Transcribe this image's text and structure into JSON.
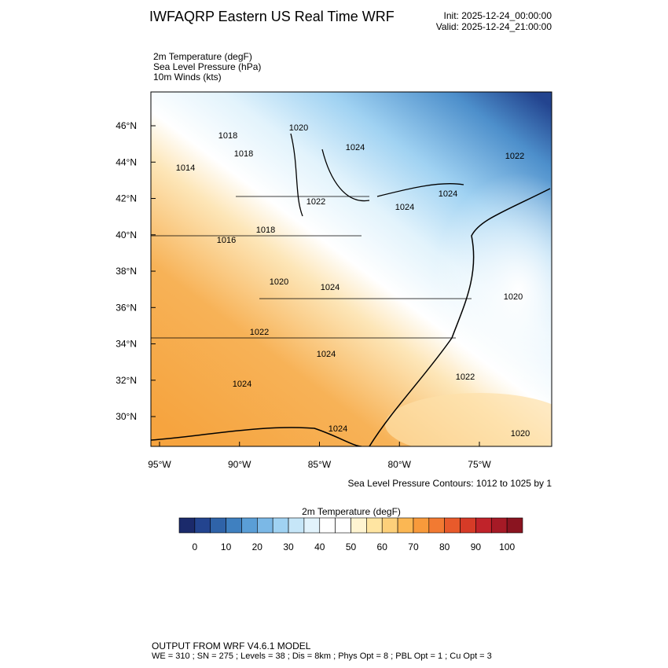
{
  "header": {
    "title": "IWFAQRP Eastern US Real Time WRF",
    "init": "Init: 2025-12-24_00:00:00",
    "valid": "Valid: 2025-12-24_21:00:00"
  },
  "fields": [
    "2m Temperature   (degF)",
    "Sea Level Pressure   (hPa)",
    "10m Winds   (kts)"
  ],
  "map": {
    "latlim": [
      28.36,
      47.86
    ],
    "lonlim": [
      -95.54,
      -70.48
    ],
    "lat_ticks": [
      {
        "value": 30,
        "label": "30°N"
      },
      {
        "value": 32,
        "label": "32°N"
      },
      {
        "value": 34,
        "label": "34°N"
      },
      {
        "value": 36,
        "label": "36°N"
      },
      {
        "value": 38,
        "label": "38°N"
      },
      {
        "value": 40,
        "label": "40°N"
      },
      {
        "value": 42,
        "label": "42°N"
      },
      {
        "value": 44,
        "label": "44°N"
      },
      {
        "value": 46,
        "label": "46°N"
      }
    ],
    "lon_ticks": [
      {
        "value": -95,
        "label": "95°W"
      },
      {
        "value": -90,
        "label": "90°W"
      },
      {
        "value": -85,
        "label": "85°W"
      },
      {
        "value": -80,
        "label": "80°W"
      },
      {
        "value": -75,
        "label": "75°W"
      }
    ],
    "contour_labels": [
      "1018",
      "1020",
      "1018",
      "1014",
      "1024",
      "1022",
      "1022",
      "1024",
      "1024",
      "1016",
      "1018",
      "1020",
      "1024",
      "1020",
      "1022",
      "1024",
      "1022",
      "1024",
      "1024",
      "1020"
    ],
    "contour_note": "Sea Level Pressure Contours: 1012 to 1025 by 1"
  },
  "colorbar": {
    "title": "2m Temperature  (degF)",
    "range": [
      -5,
      105
    ],
    "ticks": [
      0,
      10,
      20,
      30,
      40,
      50,
      60,
      70,
      80,
      90,
      100
    ],
    "colors": [
      "#1b2a6b",
      "#23448f",
      "#2f63a8",
      "#3f80c0",
      "#5a9ed6",
      "#7bb8e6",
      "#a0d2f2",
      "#c6e6f8",
      "#e2f3fc",
      "#ffffff",
      "#ffffff",
      "#fff4d1",
      "#ffe5a2",
      "#fdd07a",
      "#fbb753",
      "#f89a3b",
      "#f27a32",
      "#e85a2b",
      "#d63b27",
      "#c0232a",
      "#a61a26",
      "#8a1420"
    ]
  },
  "footer": [
    "OUTPUT FROM WRF V4.6.1 MODEL",
    "WE = 310 ; SN = 275 ; Levels = 38 ; Dis = 8km ; Phys Opt = 8 ; PBL Opt = 1 ; Cu Opt = 3"
  ]
}
